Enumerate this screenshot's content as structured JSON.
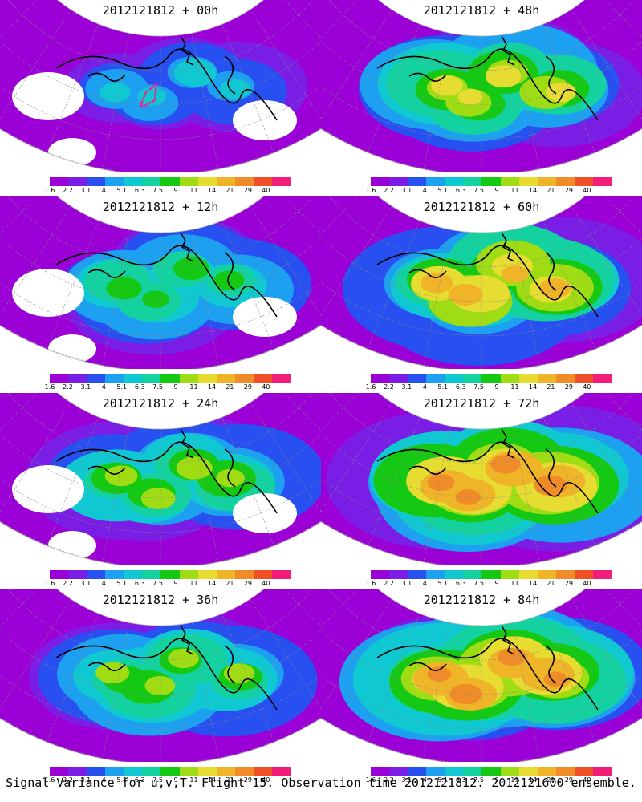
{
  "panels": [
    {
      "title": "2012121812 + 00h",
      "intensity": 0.15
    },
    {
      "title": "2012121812 + 48h",
      "intensity": 0.55
    },
    {
      "title": "2012121812 + 12h",
      "intensity": 0.35
    },
    {
      "title": "2012121812 + 60h",
      "intensity": 0.65
    },
    {
      "title": "2012121812 + 24h",
      "intensity": 0.45
    },
    {
      "title": "2012121812 + 72h",
      "intensity": 0.75
    },
    {
      "title": "2012121812 + 36h",
      "intensity": 0.5
    },
    {
      "title": "2012121812 + 84h",
      "intensity": 0.8
    }
  ],
  "colorbar": {
    "labels": [
      "1.6",
      "2.2",
      "3.1",
      "4",
      "5.1",
      "6.3",
      "7.5",
      "9",
      "11",
      "14",
      "21",
      "29",
      "40"
    ],
    "colors": [
      "#9b00d6",
      "#7a1ee6",
      "#2850f0",
      "#1ea0f0",
      "#10c8d2",
      "#14d2a0",
      "#14c814",
      "#a0dc14",
      "#e6dc32",
      "#f0b428",
      "#f08c28",
      "#f05028",
      "#f01e78"
    ]
  },
  "caption": "Signal Variance for u,v,T. Flight 15. Observation time 2012121812. 2012121600 ensemble."
}
